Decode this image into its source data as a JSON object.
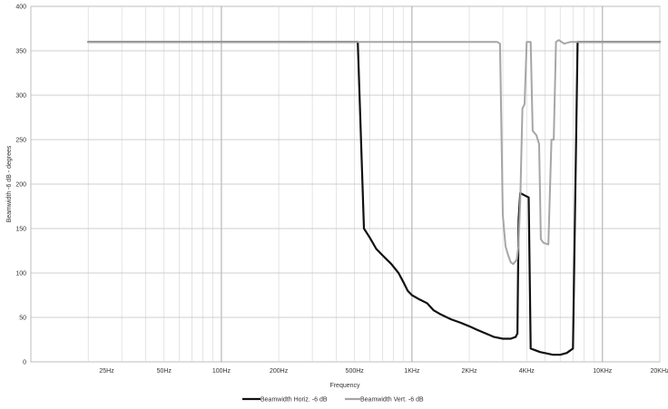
{
  "chart_data": {
    "type": "line",
    "xlabel": "Frequency",
    "ylabel": "Beamwidth -6 dB - degrees",
    "x_scale": "log",
    "xlim": [
      10,
      20000
    ],
    "ylim": [
      0,
      400
    ],
    "grid": true,
    "legend_position": "bottom",
    "y_ticks": [
      0,
      50,
      100,
      150,
      200,
      250,
      300,
      350,
      400
    ],
    "x_ticks": [
      {
        "value": 25,
        "label": "25Hz"
      },
      {
        "value": 50,
        "label": "50Hz"
      },
      {
        "value": 100,
        "label": "100Hz"
      },
      {
        "value": 200,
        "label": "200Hz"
      },
      {
        "value": 500,
        "label": "500Hz"
      },
      {
        "value": 1000,
        "label": "1KHz"
      },
      {
        "value": 2000,
        "label": "2KHz"
      },
      {
        "value": 4000,
        "label": "4KHz"
      },
      {
        "value": 10000,
        "label": "10KHz"
      },
      {
        "value": 20000,
        "label": "20KHz"
      }
    ],
    "series": [
      {
        "name": "Beamwidth Horiz. -6 dB",
        "color": "#111111",
        "points": [
          [
            20,
            360
          ],
          [
            300,
            360
          ],
          [
            520,
            360
          ],
          [
            560,
            150
          ],
          [
            600,
            140
          ],
          [
            650,
            127
          ],
          [
            700,
            120
          ],
          [
            780,
            110
          ],
          [
            850,
            100
          ],
          [
            900,
            90
          ],
          [
            950,
            80
          ],
          [
            1000,
            75
          ],
          [
            1100,
            70
          ],
          [
            1200,
            66
          ],
          [
            1300,
            58
          ],
          [
            1400,
            54
          ],
          [
            1600,
            48
          ],
          [
            1800,
            44
          ],
          [
            2000,
            40
          ],
          [
            2200,
            36
          ],
          [
            2500,
            31
          ],
          [
            2700,
            28
          ],
          [
            3000,
            26
          ],
          [
            3300,
            26
          ],
          [
            3500,
            28
          ],
          [
            3580,
            32
          ],
          [
            3630,
            160
          ],
          [
            3700,
            190
          ],
          [
            3850,
            188
          ],
          [
            4100,
            185
          ],
          [
            4200,
            15
          ],
          [
            4700,
            11
          ],
          [
            5500,
            8
          ],
          [
            6000,
            8
          ],
          [
            6500,
            10
          ],
          [
            7000,
            15
          ],
          [
            7400,
            360
          ],
          [
            20000,
            360
          ]
        ]
      },
      {
        "name": "Beamwidth Vert. -6 dB",
        "color": "#a6a6a6",
        "points": [
          [
            20,
            360
          ],
          [
            2800,
            360
          ],
          [
            2900,
            358
          ],
          [
            3000,
            165
          ],
          [
            3100,
            130
          ],
          [
            3200,
            120
          ],
          [
            3300,
            112
          ],
          [
            3400,
            110
          ],
          [
            3550,
            115
          ],
          [
            3620,
            130
          ],
          [
            3700,
            180
          ],
          [
            3800,
            285
          ],
          [
            3900,
            290
          ],
          [
            4000,
            360
          ],
          [
            4200,
            360
          ],
          [
            4300,
            260
          ],
          [
            4500,
            255
          ],
          [
            4650,
            245
          ],
          [
            4750,
            138
          ],
          [
            4900,
            134
          ],
          [
            5200,
            132
          ],
          [
            5400,
            250
          ],
          [
            5550,
            250
          ],
          [
            5700,
            360
          ],
          [
            5900,
            362
          ],
          [
            6300,
            358
          ],
          [
            6800,
            360
          ],
          [
            7200,
            360
          ],
          [
            20000,
            360
          ]
        ]
      }
    ]
  }
}
